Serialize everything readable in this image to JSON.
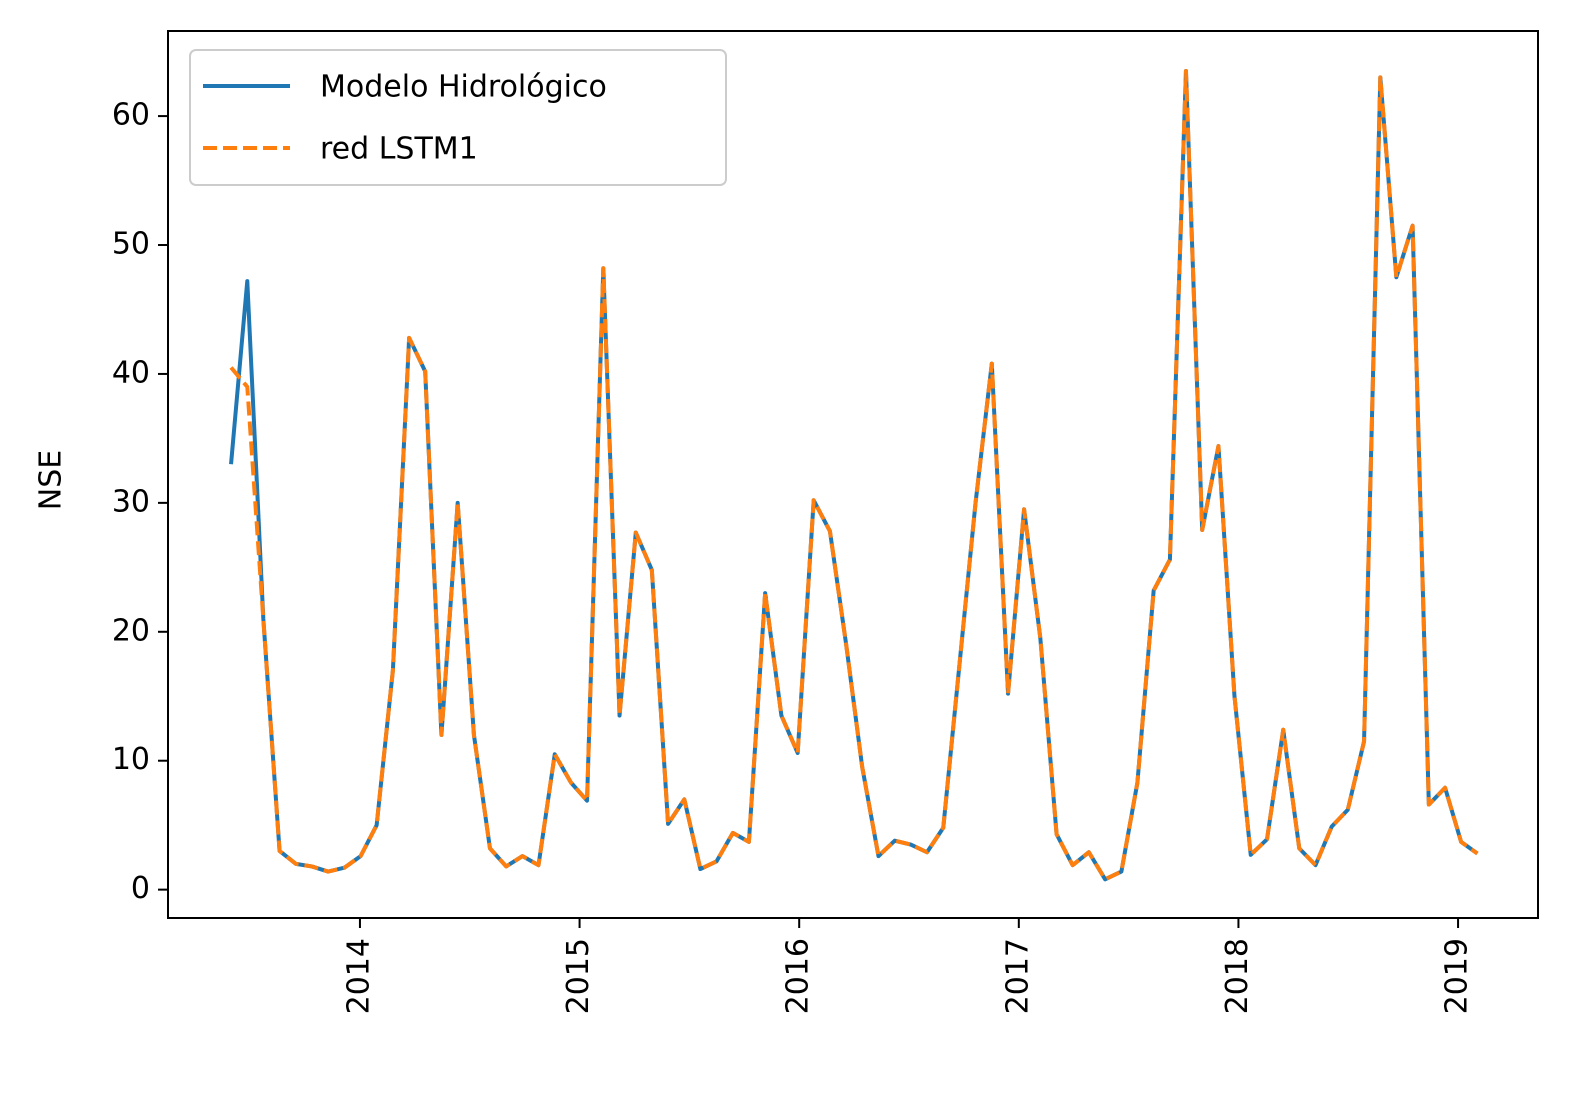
{
  "chart_data": {
    "type": "line",
    "y_label": "NSE",
    "x": [
      2013.413,
      2013.487,
      2013.56,
      2013.634,
      2013.708,
      2013.781,
      2013.855,
      2013.929,
      2014.003,
      2014.076,
      2014.15,
      2014.224,
      2014.297,
      2014.371,
      2014.445,
      2014.519,
      2014.592,
      2014.666,
      2014.74,
      2014.813,
      2014.887,
      2014.961,
      2015.034,
      2015.108,
      2015.182,
      2015.256,
      2015.329,
      2015.403,
      2015.477,
      2015.55,
      2015.624,
      2015.698,
      2015.771,
      2015.845,
      2015.919,
      2015.993,
      2016.066,
      2016.14,
      2016.214,
      2016.287,
      2016.361,
      2016.435,
      2016.508,
      2016.582,
      2016.656,
      2016.73,
      2016.803,
      2016.877,
      2016.951,
      2017.024,
      2017.098,
      2017.172,
      2017.245,
      2017.319,
      2017.393,
      2017.467,
      2017.54,
      2017.614,
      2017.688,
      2017.761,
      2017.835,
      2017.909,
      2017.982,
      2018.056,
      2018.13,
      2018.204,
      2018.277,
      2018.351,
      2018.425,
      2018.498,
      2018.572,
      2018.646,
      2018.719,
      2018.793,
      2018.867,
      2018.941,
      2019.014,
      2019.088
    ],
    "series": [
      {
        "name": "Modelo Hidrológico",
        "color": "#1f77b4",
        "dash": false,
        "values": [
          33,
          47.2,
          21,
          3,
          2,
          1.8,
          1.4,
          1.7,
          2.6,
          5,
          17,
          42.8,
          40.2,
          12,
          30,
          12,
          3.2,
          1.8,
          2.6,
          1.9,
          10.5,
          8.3,
          6.9,
          48.2,
          13.5,
          27.7,
          24.8,
          5.1,
          7,
          1.6,
          2.2,
          4.4,
          3.7,
          23,
          13.5,
          10.6,
          30.2,
          27.8,
          19,
          9.5,
          2.6,
          3.8,
          3.5,
          2.9,
          4.8,
          17.5,
          30,
          40.8,
          15.2,
          29.5,
          19.5,
          4.3,
          1.9,
          2.9,
          0.8,
          1.4,
          8.3,
          23.2,
          25.6,
          63.5,
          27.9,
          34.4,
          15,
          2.7,
          3.9,
          12.4,
          3.2,
          1.9,
          4.9,
          6.2,
          11.5,
          63,
          47.5,
          51.5,
          6.6,
          7.9,
          3.7,
          2.8
        ]
      },
      {
        "name": "red LSTM1",
        "color": "#ff7f0e",
        "dash": true,
        "values": [
          40.5,
          39,
          21,
          3,
          2,
          1.8,
          1.4,
          1.7,
          2.6,
          5,
          17,
          42.8,
          40.2,
          12,
          30,
          12,
          3.2,
          1.8,
          2.6,
          1.9,
          10.5,
          8.3,
          6.9,
          48.2,
          13.5,
          27.7,
          24.8,
          5.1,
          7,
          1.6,
          2.2,
          4.4,
          3.7,
          23,
          13.5,
          10.6,
          30.2,
          27.8,
          19,
          9.5,
          2.6,
          3.8,
          3.5,
          2.9,
          4.8,
          17.5,
          30,
          40.8,
          15.2,
          29.5,
          19.5,
          4.3,
          1.9,
          2.9,
          0.8,
          1.4,
          8.3,
          23.2,
          25.6,
          63.5,
          27.9,
          34.4,
          15,
          2.7,
          3.9,
          12.4,
          3.2,
          1.9,
          4.9,
          6.2,
          11.5,
          63,
          47.5,
          51.5,
          6.6,
          7.9,
          3.7,
          2.8
        ]
      }
    ],
    "xlim": [
      2013.126,
      2019.364
    ],
    "xticks": [
      2014,
      2015,
      2016,
      2017,
      2018,
      2019
    ],
    "ylim": [
      -2.2,
      66.6
    ],
    "yticks": [
      0,
      10,
      20,
      30,
      40,
      50,
      60
    ],
    "grid": false,
    "legend": "upper left"
  }
}
